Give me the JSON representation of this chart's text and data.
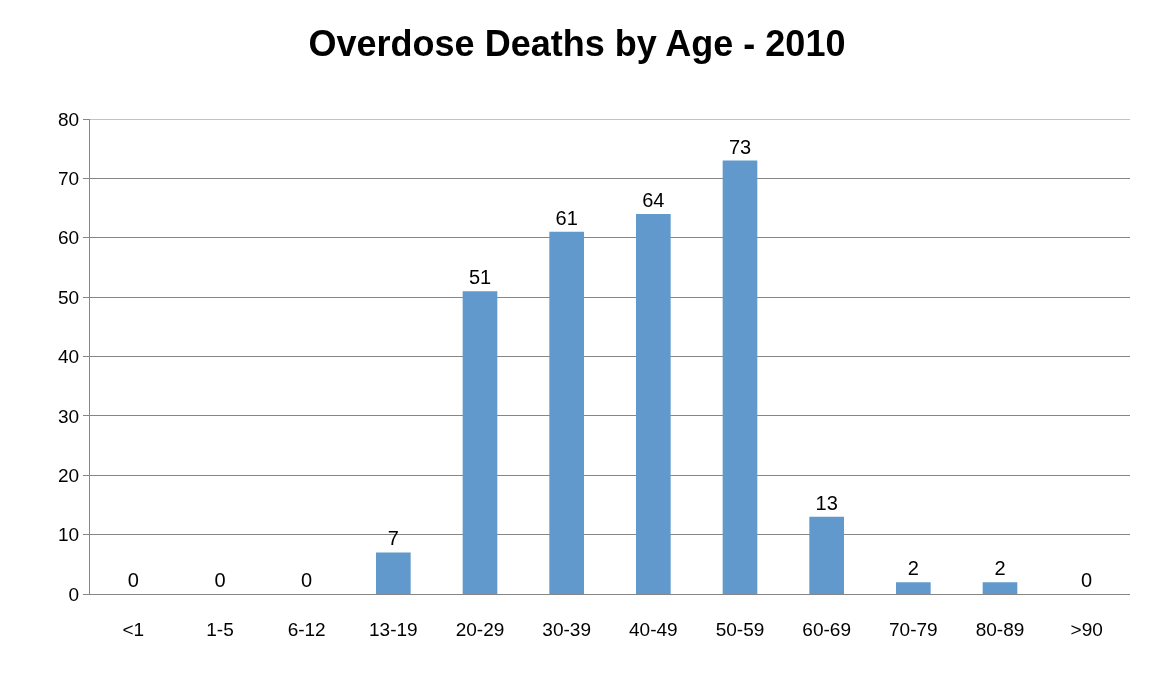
{
  "chart_data": {
    "type": "bar",
    "title": "Overdose Deaths by Age - 2010",
    "categories": [
      "<1",
      "1-5",
      "6-12",
      "13-19",
      "20-29",
      "30-39",
      "40-49",
      "50-59",
      "60-69",
      "70-79",
      "80-89",
      ">90"
    ],
    "values": [
      0,
      0,
      0,
      7,
      51,
      61,
      64,
      73,
      13,
      2,
      2,
      0
    ],
    "color": "#6199cc",
    "ylim": [
      0,
      80
    ],
    "yticks": [
      0,
      10,
      20,
      30,
      40,
      50,
      60,
      70,
      80
    ],
    "grid": "y",
    "data_labels": true
  }
}
